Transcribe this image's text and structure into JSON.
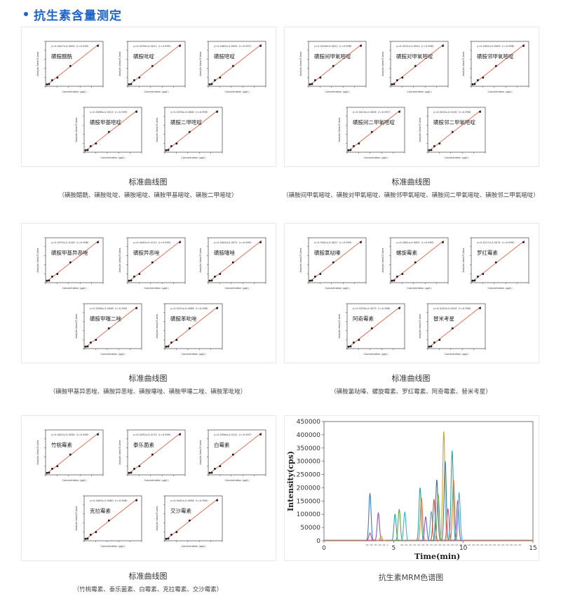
{
  "section": {
    "title": "抗生素含量测定"
  },
  "panels": [
    {
      "caption": "标准曲线图",
      "subcaption": "（磺胺醋酰、磺胺吡啶、磺胺嘧啶、磺胺甲基嘧啶、磺胺二甲嘧啶）",
      "charts": [
        {
          "eq": "y=0.0427x-0.0004（r=0.999）",
          "label": "磺胺醋酰"
        },
        {
          "eq": "y=0.0376x-0.0011（r=0.999）",
          "label": "磺胺吡啶"
        },
        {
          "eq": "y=0.0462x-0.0005（r=0.997）",
          "label": "磺胺嘧啶"
        },
        {
          "eq": "y=0.0398x-0.0013（r=0.999）",
          "label": "磺胺甲基嘧啶"
        },
        {
          "eq": "y=0.0376x-0.0008（r=0.999）",
          "label": "磺胺二甲嘧啶"
        }
      ]
    },
    {
      "caption": "标准曲线图",
      "subcaption": "（磺胺间甲氧嘧啶、磺胺对甲氧嘧啶、磺胺邻甲氧嘧啶、磺胺间二甲氧嘧啶、磺胺邻二甲氧嘧啶）",
      "charts": [
        {
          "eq": "y=0.0316x-0.0021（r=0.998）",
          "label": "磺胺间甲氧嘧啶"
        },
        {
          "eq": "y=0.0311x-0.0020（r=0.998）",
          "label": "磺胺对甲氧嘧啶"
        },
        {
          "eq": "y=0.0392x-0.0009（r=0.998）",
          "label": "磺胺邻甲氧嘧啶"
        },
        {
          "eq": "y=0.0413x-0.0028（r=0.997）",
          "label": "磺胺间二甲氧嘧啶"
        },
        {
          "eq": "y=0.0415x-0.0190（r=0.998）",
          "label": "磺胺邻二甲氧嘧啶"
        }
      ]
    },
    {
      "caption": "标准曲线图",
      "subcaption": "（磺胺甲基异恶唑、磺胺异恶唑、磺胺噻唑、磺胺甲噻二唑、磺胺苯吡唑）",
      "charts": [
        {
          "eq": "y=0.0379x-0.0126（r=0.998）",
          "label": "磺胺甲基异恶唑"
        },
        {
          "eq": "y=0.0445x-0.0112（r=0.999）",
          "label": "磺胺异恶唑"
        },
        {
          "eq": "y=0.0405x-0.0071（r=0.999）",
          "label": "磺胺噻唑"
        },
        {
          "eq": "y=0.0298x-0.0048（r=0.999）",
          "label": "磺胺甲噻二唑"
        },
        {
          "eq": "y=0.0315x-0.0086（r=0.998）",
          "label": "磺胺苯吡唑"
        }
      ]
    },
    {
      "caption": "标准曲线图",
      "subcaption": "（磺胺氯哒嗪、螺旋霉素、罗红霉素、阿奇霉素、替米考星）",
      "charts": [
        {
          "eq": "y=0.0342x-0.0027（r=0.999）",
          "label": "磺胺氯哒嗪"
        },
        {
          "eq": "y=0.0061x-0.0005（r=0.999）",
          "label": "螺旋霉素"
        },
        {
          "eq": "y=0.0117x-0.0074（r=0.999）",
          "label": "罗红霉素"
        },
        {
          "eq": "y=0.0376x-0.0073（r=0.998）",
          "label": "阿奇霉素"
        },
        {
          "eq": "y=0.0220x-0.0035（r=0.998）",
          "label": "替米考星"
        }
      ]
    },
    {
      "caption": "标准曲线图",
      "subcaption": "（竹桃霉素、泰乐菌素、白霉素、克拉霉素、交沙霉素）",
      "charts": [
        {
          "eq": "y=0.0423x-0.0034（r=0.999）",
          "label": "竹桃霉素"
        },
        {
          "eq": "y=0.0292x-0.0174（r=0.999）",
          "label": "泰乐菌素"
        },
        {
          "eq": "y=0.0396x-0.0121（r=0.997）",
          "label": "白霉素"
        },
        {
          "eq": "y=0.0405x-0.0080（r=0.998）",
          "label": "克拉霉素"
        },
        {
          "eq": "y=0.0442x-0.0098（r=0.999）",
          "label": "交沙霉素"
        }
      ]
    }
  ],
  "mini_axes": {
    "xlabel": "Concentration (μg/L)",
    "ylabel": "Analyte Area/IS Area"
  },
  "chart_data": {
    "type": "line",
    "xlabel": "Time(min)",
    "ylabel": "Intensity(cps)",
    "xlim": [
      0,
      15
    ],
    "ylim": [
      0,
      450000
    ],
    "xticks": [
      "0",
      "5",
      "10",
      "15"
    ],
    "yticks": [
      "0",
      "50000",
      "100000",
      "150000",
      "200000",
      "250000",
      "300000",
      "350000",
      "400000",
      "450000"
    ],
    "peaks": [
      {
        "rt": 3.3,
        "height": 178000,
        "color": "#3c7fc0"
      },
      {
        "rt": 3.3,
        "height": 30000,
        "color": "#d94f8a"
      },
      {
        "rt": 3.9,
        "height": 105000,
        "color": "#8a5ab8"
      },
      {
        "rt": 4.1,
        "height": 18000,
        "color": "#e0a030"
      },
      {
        "rt": 5.1,
        "height": 100000,
        "color": "#2aa6a0"
      },
      {
        "rt": 5.4,
        "height": 118000,
        "color": "#5aaa3c"
      },
      {
        "rt": 5.8,
        "height": 108000,
        "color": "#3ab0d8"
      },
      {
        "rt": 6.9,
        "height": 200000,
        "color": "#2aa6a0"
      },
      {
        "rt": 7.0,
        "height": 160000,
        "color": "#e07a30"
      },
      {
        "rt": 7.3,
        "height": 90000,
        "color": "#8a5ab8"
      },
      {
        "rt": 7.7,
        "height": 110000,
        "color": "#3ab0d8"
      },
      {
        "rt": 7.9,
        "height": 155000,
        "color": "#c44b3a"
      },
      {
        "rt": 8.1,
        "height": 230000,
        "color": "#4a6a9a"
      },
      {
        "rt": 8.2,
        "height": 175000,
        "color": "#6ab040"
      },
      {
        "rt": 8.6,
        "height": 412000,
        "color": "#c8a82a"
      },
      {
        "rt": 8.7,
        "height": 300000,
        "color": "#3c7fc0"
      },
      {
        "rt": 8.9,
        "height": 120000,
        "color": "#d94f8a"
      },
      {
        "rt": 9.2,
        "height": 340000,
        "color": "#2aa6a0"
      },
      {
        "rt": 9.3,
        "height": 230000,
        "color": "#e07a30"
      },
      {
        "rt": 9.6,
        "height": 150000,
        "color": "#8a5ab8"
      },
      {
        "rt": 9.7,
        "height": 180000,
        "color": "#3ab0d8"
      }
    ]
  },
  "chromatogram_caption": "抗生素MRM色谱图",
  "colors": {
    "accent": "#1e63c8",
    "fit_line": "#e8624a",
    "point": "#222222"
  }
}
